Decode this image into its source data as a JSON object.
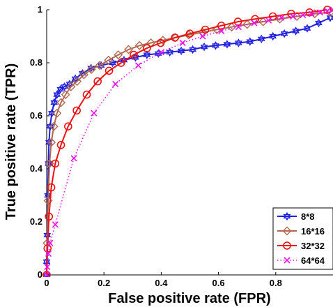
{
  "chart_data": {
    "type": "line",
    "title": "",
    "xlabel": "False positive rate (FPR)",
    "ylabel": "True positive rate (TPR)",
    "xlim": [
      0,
      1
    ],
    "ylim": [
      0,
      1
    ],
    "xticks": [
      "0",
      "0.2",
      "0.4",
      "0.6",
      "0.8"
    ],
    "yticks": [
      "0",
      "0.2",
      "0.4",
      "0.6",
      "0.8",
      "1"
    ],
    "grid": false,
    "legend_position": "bottom-right",
    "series": [
      {
        "name": "8*8",
        "color": "#1f1fe0",
        "line_style": "solid",
        "marker": "hexagram",
        "x": [
          0,
          0,
          0.002,
          0.004,
          0.006,
          0.008,
          0.012,
          0.018,
          0.026,
          0.036,
          0.048,
          0.062,
          0.08,
          0.1,
          0.125,
          0.155,
          0.19,
          0.23,
          0.27,
          0.31,
          0.35,
          0.39,
          0.43,
          0.47,
          0.51,
          0.55,
          0.59,
          0.63,
          0.67,
          0.71,
          0.75,
          0.79,
          0.83,
          0.87,
          0.91,
          0.95,
          0.99
        ],
        "y": [
          0,
          0.05,
          0.15,
          0.3,
          0.42,
          0.5,
          0.56,
          0.61,
          0.65,
          0.68,
          0.7,
          0.71,
          0.72,
          0.74,
          0.76,
          0.78,
          0.79,
          0.8,
          0.81,
          0.82,
          0.83,
          0.835,
          0.84,
          0.845,
          0.85,
          0.86,
          0.865,
          0.87,
          0.875,
          0.88,
          0.89,
          0.9,
          0.91,
          0.92,
          0.93,
          0.95,
          0.97
        ]
      },
      {
        "name": "16*16",
        "color": "#b06a50",
        "line_style": "solid",
        "marker": "diamond",
        "x": [
          0,
          0.002,
          0.005,
          0.01,
          0.016,
          0.025,
          0.036,
          0.05,
          0.066,
          0.085,
          0.106,
          0.13,
          0.156,
          0.185,
          0.216,
          0.25,
          0.286,
          0.324,
          0.364,
          0.406,
          0.45,
          0.496,
          0.544,
          0.594,
          0.646,
          0.7,
          0.756,
          0.814,
          0.874,
          0.936,
          0.99
        ],
        "y": [
          0,
          0.12,
          0.28,
          0.42,
          0.5,
          0.56,
          0.61,
          0.65,
          0.68,
          0.71,
          0.73,
          0.755,
          0.775,
          0.79,
          0.81,
          0.83,
          0.85,
          0.865,
          0.875,
          0.885,
          0.895,
          0.905,
          0.915,
          0.925,
          0.935,
          0.945,
          0.955,
          0.965,
          0.975,
          0.985,
          0.99
        ]
      },
      {
        "name": "32*32",
        "color": "#ee1111",
        "line_style": "solid",
        "marker": "circle",
        "x": [
          0,
          0.003,
          0.008,
          0.016,
          0.03,
          0.05,
          0.075,
          0.105,
          0.14,
          0.178,
          0.218,
          0.26,
          0.304,
          0.35,
          0.398,
          0.448,
          0.5,
          0.554,
          0.61,
          0.668,
          0.728,
          0.79,
          0.854,
          0.918,
          0.98
        ],
        "y": [
          0,
          0.1,
          0.22,
          0.33,
          0.42,
          0.49,
          0.56,
          0.62,
          0.68,
          0.73,
          0.77,
          0.8,
          0.83,
          0.855,
          0.875,
          0.895,
          0.91,
          0.925,
          0.94,
          0.955,
          0.965,
          0.975,
          0.985,
          0.99,
          1.0
        ]
      },
      {
        "name": "64*64",
        "color": "#ee11ee",
        "line_style": "dotted",
        "marker": "x",
        "x": [
          0,
          0.002,
          0.006,
          0.012,
          0.03,
          0.095,
          0.165,
          0.24,
          0.32,
          0.4,
          0.475,
          0.545,
          0.61,
          0.67,
          0.725,
          0.775,
          0.82,
          0.86,
          0.895,
          0.925,
          0.955,
          0.98,
          1.0
        ],
        "y": [
          0,
          0.03,
          0.08,
          0.12,
          0.19,
          0.44,
          0.61,
          0.72,
          0.79,
          0.84,
          0.875,
          0.9,
          0.92,
          0.935,
          0.95,
          0.96,
          0.97,
          0.975,
          0.98,
          0.985,
          0.99,
          0.995,
          1.0
        ]
      }
    ]
  }
}
